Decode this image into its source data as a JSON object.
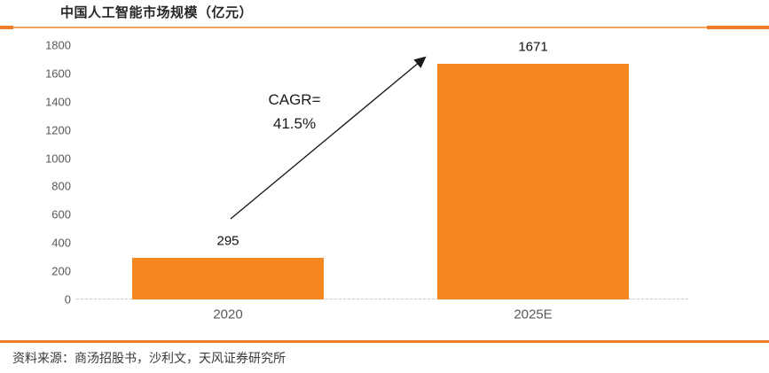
{
  "header": {
    "title": "中国人工智能市场规模（亿元）"
  },
  "annotation": {
    "line1": "CAGR=",
    "line2": "41.5%"
  },
  "footer": {
    "source": "资料来源：商汤招股书，沙利文，天风证券研究所"
  },
  "colors": {
    "bar": "#F4871F",
    "rule": "#EE7D2A",
    "rule_light": "#F7A75C",
    "axis_label": "#595959",
    "data_label": "#111111"
  },
  "chart_data": {
    "type": "bar",
    "title": "中国人工智能市场规模（亿元）",
    "categories": [
      "2020",
      "2025E"
    ],
    "values": [
      295,
      1671
    ],
    "data_labels": [
      "295",
      "1671"
    ],
    "ylabel": "",
    "xlabel": "",
    "ylim": [
      0,
      1800
    ],
    "yticks": [
      0,
      200,
      400,
      600,
      800,
      1000,
      1200,
      1400,
      1600,
      1800
    ],
    "grid": false,
    "legend": false,
    "annotation_text": "CAGR=41.5%",
    "bar_color": "#F4871F"
  }
}
